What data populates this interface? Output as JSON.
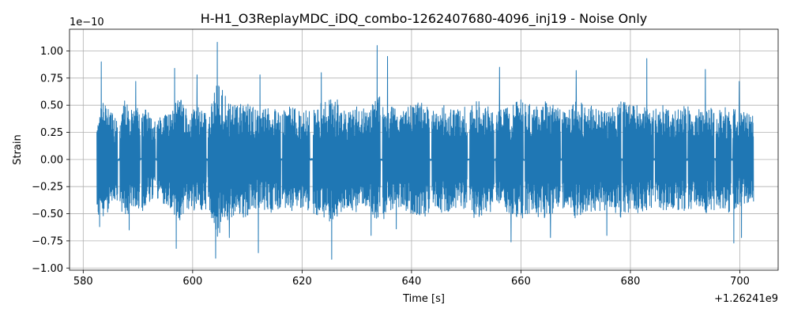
{
  "chart_data": {
    "type": "line",
    "title": "H-H1_O3ReplayMDC_iDQ_combo-1262407680-4096_inj19 - Noise Only",
    "xlabel": "Time [s]",
    "ylabel": "Strain",
    "y_multiplier": "1e−10",
    "x_offset": "+1.26241e9",
    "xlim": [
      577.5,
      707.0
    ],
    "ylim": [
      -1.02,
      1.2
    ],
    "x_ticks": [
      580,
      600,
      620,
      640,
      660,
      680,
      700
    ],
    "x_tick_labels": [
      "580",
      "600",
      "620",
      "640",
      "660",
      "680",
      "700"
    ],
    "y_ticks": [
      -1.0,
      -0.75,
      -0.5,
      -0.25,
      0.0,
      0.25,
      0.5,
      0.75,
      1.0
    ],
    "y_tick_labels": [
      "−1.00",
      "−0.75",
      "−0.50",
      "−0.25",
      "0.00",
      "0.25",
      "0.50",
      "0.75",
      "1.00"
    ],
    "grid": true,
    "line_color": "#1f77b4",
    "series": [
      {
        "x_range": [
          582.5,
          702.5
        ],
        "envelope": {
          "t": [
            582.5,
            583.0,
            584.5,
            586.0,
            587.5,
            589.0,
            591.0,
            593.0,
            596.0,
            597.5,
            599.0,
            601.0,
            603.0,
            604.5,
            606.0,
            608.0,
            610.0,
            612.0,
            614.0,
            616.0,
            618.0,
            620.0,
            622.0,
            624.0,
            626.0,
            628.0,
            630.0,
            632.0,
            634.0,
            636.0,
            638.0,
            640.0,
            642.0,
            644.0,
            646.0,
            648.0,
            650.0,
            652.0,
            654.0,
            656.0,
            658.0,
            660.0,
            662.0,
            664.0,
            666.0,
            668.0,
            670.0,
            672.0,
            674.0,
            676.0,
            678.0,
            680.0,
            682.0,
            684.0,
            686.0,
            688.0,
            690.0,
            692.0,
            694.0,
            696.0,
            698.0,
            700.0,
            702.5
          ],
          "amp": [
            0.45,
            0.55,
            0.5,
            0.4,
            0.55,
            0.45,
            0.5,
            0.35,
            0.45,
            0.6,
            0.45,
            0.5,
            0.45,
            0.75,
            0.6,
            0.5,
            0.55,
            0.45,
            0.5,
            0.45,
            0.5,
            0.45,
            0.5,
            0.55,
            0.6,
            0.45,
            0.5,
            0.45,
            0.6,
            0.5,
            0.45,
            0.5,
            0.55,
            0.45,
            0.5,
            0.45,
            0.5,
            0.55,
            0.5,
            0.45,
            0.5,
            0.55,
            0.5,
            0.55,
            0.5,
            0.45,
            0.55,
            0.5,
            0.5,
            0.45,
            0.55,
            0.5,
            0.5,
            0.45,
            0.5,
            0.45,
            0.5,
            0.45,
            0.5,
            0.45,
            0.5,
            0.45,
            0.4
          ]
        },
        "gaps": [
          [
            586.3,
            586.7
          ],
          [
            590.4,
            590.7
          ],
          [
            593.2,
            593.5
          ],
          [
            602.5,
            602.8
          ],
          [
            616.1,
            616.4
          ],
          [
            621.4,
            622.0
          ],
          [
            634.3,
            634.7
          ],
          [
            643.3,
            643.7
          ],
          [
            650.2,
            650.6
          ],
          [
            655.1,
            655.4
          ],
          [
            660.4,
            660.7
          ],
          [
            667.2,
            667.5
          ],
          [
            678.3,
            678.6
          ],
          [
            684.2,
            684.5
          ],
          [
            690.2,
            690.5
          ],
          [
            695.3,
            695.6
          ],
          [
            698.4,
            698.7
          ]
        ],
        "peaks": [
          {
            "x": 583.3,
            "y": 0.9
          },
          {
            "x": 583.0,
            "y": -0.62
          },
          {
            "x": 589.6,
            "y": 0.72
          },
          {
            "x": 588.4,
            "y": -0.65
          },
          {
            "x": 596.7,
            "y": 0.84
          },
          {
            "x": 597.0,
            "y": -0.82
          },
          {
            "x": 600.8,
            "y": 0.78
          },
          {
            "x": 604.2,
            "y": -0.91
          },
          {
            "x": 604.5,
            "y": 1.08
          },
          {
            "x": 606.7,
            "y": -0.72
          },
          {
            "x": 612.3,
            "y": 0.78
          },
          {
            "x": 612.0,
            "y": -0.86
          },
          {
            "x": 623.5,
            "y": 0.8
          },
          {
            "x": 625.4,
            "y": -0.92
          },
          {
            "x": 633.7,
            "y": 1.05
          },
          {
            "x": 632.6,
            "y": -0.7
          },
          {
            "x": 635.6,
            "y": 0.95
          },
          {
            "x": 637.2,
            "y": -0.64
          },
          {
            "x": 656.1,
            "y": 0.85
          },
          {
            "x": 658.2,
            "y": -0.76
          },
          {
            "x": 670.1,
            "y": 0.82
          },
          {
            "x": 665.4,
            "y": -0.72
          },
          {
            "x": 683.0,
            "y": 0.93
          },
          {
            "x": 675.7,
            "y": -0.7
          },
          {
            "x": 693.7,
            "y": 0.83
          },
          {
            "x": 698.9,
            "y": -0.77
          },
          {
            "x": 699.9,
            "y": 0.72
          },
          {
            "x": 700.3,
            "y": -0.72
          }
        ]
      }
    ]
  }
}
